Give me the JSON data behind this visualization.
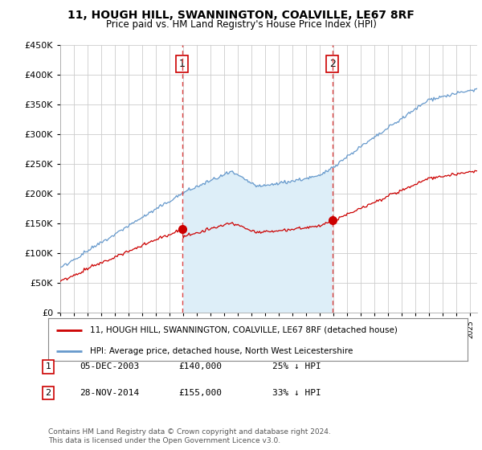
{
  "title": "11, HOUGH HILL, SWANNINGTON, COALVILLE, LE67 8RF",
  "subtitle": "Price paid vs. HM Land Registry's House Price Index (HPI)",
  "legend_property": "11, HOUGH HILL, SWANNINGTON, COALVILLE, LE67 8RF (detached house)",
  "legend_hpi": "HPI: Average price, detached house, North West Leicestershire",
  "footer": "Contains HM Land Registry data © Crown copyright and database right 2024.\nThis data is licensed under the Open Government Licence v3.0.",
  "sale1_label": "1",
  "sale1_date": "05-DEC-2003",
  "sale1_price": "£140,000",
  "sale1_hpi": "25% ↓ HPI",
  "sale1_year": 2003.92,
  "sale1_value": 140000,
  "sale2_label": "2",
  "sale2_date": "28-NOV-2014",
  "sale2_price": "£155,000",
  "sale2_hpi": "33% ↓ HPI",
  "sale2_year": 2014.91,
  "sale2_value": 155000,
  "ylim": [
    0,
    450000
  ],
  "xlim_start": 1995,
  "xlim_end": 2025.5,
  "property_color": "#cc0000",
  "hpi_color": "#6699cc",
  "hpi_fill_color": "#ddeef8",
  "vline_color": "#dd4444",
  "background_color": "#ffffff",
  "plot_bg_color": "#ffffff"
}
